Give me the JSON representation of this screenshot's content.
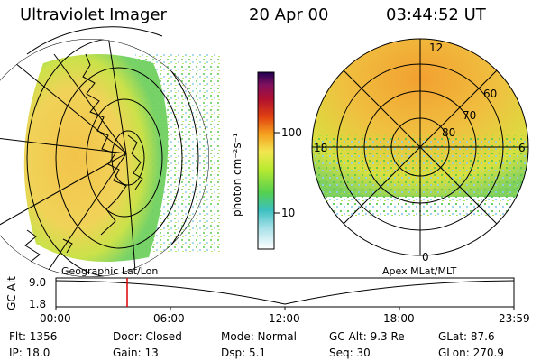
{
  "header": {
    "instrument": "Ultraviolet Imager",
    "date": "20 Apr 00",
    "time": "03:44:52 UT"
  },
  "colorbar": {
    "label": "photon cm⁻²s⁻¹",
    "ticks": [
      "100",
      "10"
    ]
  },
  "geo_panel": {
    "label": "Geographic Lat/Lon"
  },
  "polar_panel": {
    "label": "Apex MLat/MLT",
    "mlt_labels": [
      "12",
      "18",
      "6",
      "0"
    ],
    "lat_labels": [
      "60",
      "70",
      "80"
    ]
  },
  "altitude_plot": {
    "ylabel": "GC Alt",
    "yticks": [
      "9.0",
      "1.8"
    ],
    "xticks": [
      "00:00",
      "06:00",
      "12:00",
      "18:00",
      "23:59"
    ],
    "current_time_fraction": 0.16
  },
  "status": {
    "flt": "Flt: 1356",
    "ip": "IP: 18.0",
    "door": "Door: Closed",
    "gain": "Gain: 13",
    "mode": "Mode: Normal",
    "dsp": "Dsp:      5.1",
    "gc_alt": "GC Alt: 9.3 Re",
    "seq": "Seq: 30",
    "glat": "GLat:   87.6",
    "glon": "GLon: 270.9"
  },
  "colors": {
    "marker": "#dd0000"
  }
}
